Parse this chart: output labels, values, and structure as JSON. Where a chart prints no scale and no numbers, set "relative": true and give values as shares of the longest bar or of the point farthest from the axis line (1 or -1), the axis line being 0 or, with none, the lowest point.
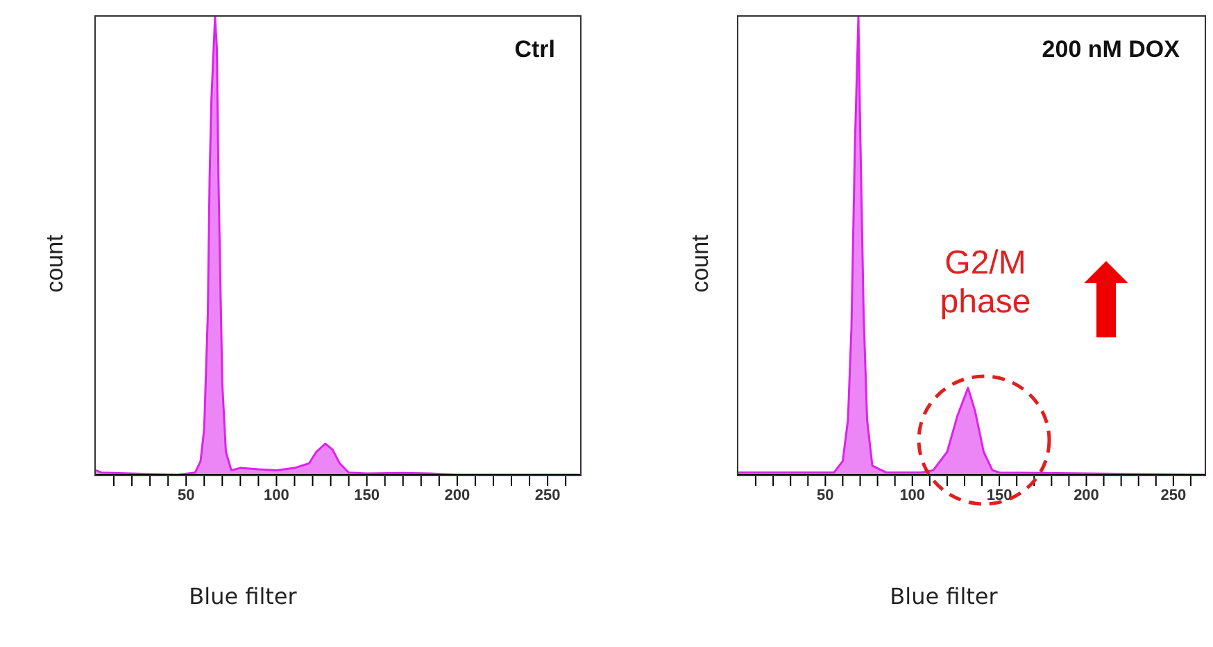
{
  "chart_data": [
    {
      "type": "area",
      "relative": true,
      "title": "Ctrl",
      "xlabel": "Blue filter",
      "ylabel": "count",
      "xlim": [
        0,
        268
      ],
      "xticks": [
        {
          "value": 10,
          "label": null
        },
        {
          "value": 20,
          "label": null
        },
        {
          "value": 30,
          "label": null
        },
        {
          "value": 40,
          "label": null
        },
        50,
        {
          "value": 60,
          "label": null
        },
        {
          "value": 70,
          "label": null
        },
        {
          "value": 80,
          "label": null
        },
        {
          "value": 90,
          "label": null
        },
        100,
        {
          "value": 110,
          "label": null
        },
        {
          "value": 120,
          "label": null
        },
        {
          "value": 130,
          "label": null
        },
        {
          "value": 140,
          "label": null
        },
        150,
        {
          "value": 160,
          "label": null
        },
        {
          "value": 170,
          "label": null
        },
        {
          "value": 180,
          "label": null
        },
        {
          "value": 190,
          "label": null
        },
        200,
        {
          "value": 210,
          "label": null
        },
        {
          "value": 220,
          "label": null
        },
        {
          "value": 230,
          "label": null
        },
        {
          "value": 240,
          "label": null
        },
        250,
        {
          "value": 260,
          "label": null
        }
      ],
      "x": [
        0,
        3,
        45,
        55,
        58,
        60,
        62,
        63,
        64,
        66,
        67,
        68,
        70,
        72,
        75,
        80,
        90,
        100,
        110,
        118,
        122,
        127,
        131,
        135,
        140,
        150,
        170,
        185,
        200,
        268
      ],
      "series": [
        {
          "color": "#dd22ee",
          "values": [
            0.01,
            0.005,
            0,
            0.005,
            0.03,
            0.1,
            0.35,
            0.65,
            0.82,
            1.0,
            0.93,
            0.62,
            0.2,
            0.05,
            0.01,
            0.015,
            0.012,
            0.01,
            0.015,
            0.025,
            0.05,
            0.068,
            0.055,
            0.025,
            0.005,
            0.003,
            0.004,
            0.003,
            0,
            0
          ]
        }
      ]
    },
    {
      "type": "area",
      "relative": true,
      "title": "200 nM DOX",
      "xlabel": "Blue filter",
      "ylabel": "count",
      "xlim": [
        0,
        268
      ],
      "xticks": [
        {
          "value": 10,
          "label": null
        },
        {
          "value": 20,
          "label": null
        },
        {
          "value": 30,
          "label": null
        },
        {
          "value": 40,
          "label": null
        },
        50,
        {
          "value": 60,
          "label": null
        },
        {
          "value": 70,
          "label": null
        },
        {
          "value": 80,
          "label": null
        },
        {
          "value": 90,
          "label": null
        },
        100,
        {
          "value": 110,
          "label": null
        },
        {
          "value": 120,
          "label": null
        },
        {
          "value": 130,
          "label": null
        },
        {
          "value": 140,
          "label": null
        },
        150,
        {
          "value": 160,
          "label": null
        },
        {
          "value": 170,
          "label": null
        },
        {
          "value": 180,
          "label": null
        },
        {
          "value": 190,
          "label": null
        },
        200,
        {
          "value": 210,
          "label": null
        },
        {
          "value": 220,
          "label": null
        },
        {
          "value": 230,
          "label": null
        },
        {
          "value": 240,
          "label": null
        },
        250,
        {
          "value": 260,
          "label": null
        }
      ],
      "x": [
        0,
        55,
        60,
        63,
        65,
        67,
        69,
        70,
        72,
        74,
        77,
        85,
        105,
        112,
        120,
        126,
        132,
        136,
        141,
        146,
        150,
        200,
        268
      ],
      "series": [
        {
          "color": "#dd22ee",
          "values": [
            0.005,
            0.005,
            0.03,
            0.12,
            0.32,
            0.72,
            1.0,
            0.76,
            0.35,
            0.12,
            0.02,
            0.005,
            0.005,
            0.01,
            0.05,
            0.13,
            0.19,
            0.14,
            0.05,
            0.01,
            0.005,
            0.003,
            0
          ]
        }
      ],
      "annotations": [
        "G2/M phase"
      ]
    }
  ]
}
